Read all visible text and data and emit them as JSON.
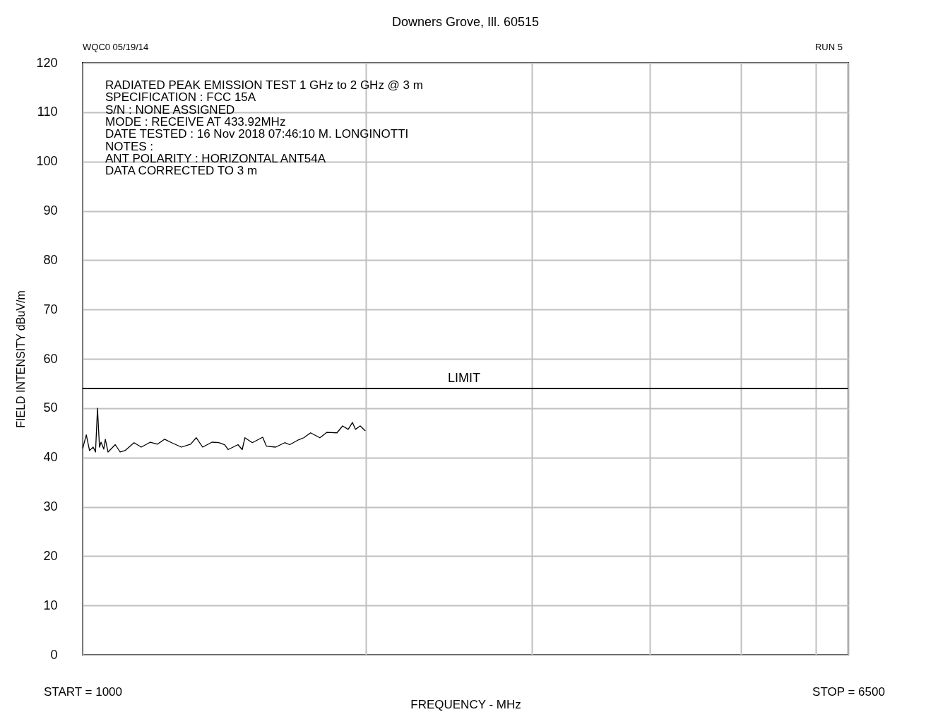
{
  "chart_data": {
    "type": "line",
    "title": "Downers Grove, Ill. 60515",
    "xlabel": "FREQUENCY - MHz",
    "ylabel": "FIELD INTENSITY    dBuV/m",
    "annotations": [
      "WQC0  05/19/14",
      "RUN 5",
      "RADIATED PEAK EMISSION TEST 1 GHz to 2 GHz @ 3 m",
      "SPECIFICATION : FCC 15A",
      "S/N : NONE ASSIGNED",
      "MODE : RECEIVE AT 433.92MHz",
      "DATE TESTED : 16 Nov 2018 07:46:10  M. LONGINOTTI",
      "NOTES :",
      "ANT POLARITY : HORIZONTAL  ANT54A",
      "DATA CORRECTED TO 3 m"
    ],
    "log": "x",
    "grid": true,
    "xlim": [
      1000,
      6500
    ],
    "xticks": [
      {
        "value": 1000,
        "label": "START = 1000"
      },
      {
        "value": 2000,
        "label": null
      },
      {
        "value": 3000,
        "label": null
      },
      {
        "value": 4000,
        "label": null
      },
      {
        "value": 5000,
        "label": null
      },
      {
        "value": 6000,
        "label": null
      },
      {
        "value": 6500,
        "label": "STOP = 6500"
      }
    ],
    "ylim": [
      0,
      120
    ],
    "yticks": [
      0,
      10,
      20,
      30,
      40,
      50,
      60,
      70,
      80,
      90,
      100,
      110,
      120
    ],
    "ref_lines": [
      {
        "axis": "y",
        "value": 54,
        "label": "LIMIT",
        "color": "#000000"
      }
    ],
    "series": [
      {
        "color": "#000000",
        "x": [
          1000,
          1009,
          1017,
          1026,
          1032,
          1037,
          1042,
          1046,
          1053,
          1057,
          1064,
          1083,
          1096,
          1109,
          1134,
          1154,
          1180,
          1201,
          1222,
          1243,
          1273,
          1302,
          1320,
          1341,
          1372,
          1395,
          1415,
          1427,
          1462,
          1477,
          1487,
          1514,
          1553,
          1567,
          1603,
          1639,
          1659,
          1696,
          1717,
          1746,
          1786,
          1817,
          1862,
          1888,
          1914,
          1934,
          1948,
          1971,
          1996
        ],
        "values": [
          41.8,
          44.6,
          41.4,
          42.1,
          41.1,
          50,
          42.1,
          43.1,
          41.7,
          43.7,
          41.1,
          42.6,
          41.1,
          41.4,
          43,
          42.1,
          43.1,
          42.7,
          43.7,
          43,
          42.1,
          42.7,
          44,
          42.1,
          43.1,
          43,
          42.6,
          41.6,
          42.6,
          41.6,
          44,
          43,
          44.1,
          42.3,
          42.1,
          43,
          42.6,
          43.6,
          44,
          45,
          44,
          45.1,
          45,
          46.4,
          45.7,
          47.1,
          45.7,
          46.4,
          45.4
        ]
      }
    ]
  }
}
